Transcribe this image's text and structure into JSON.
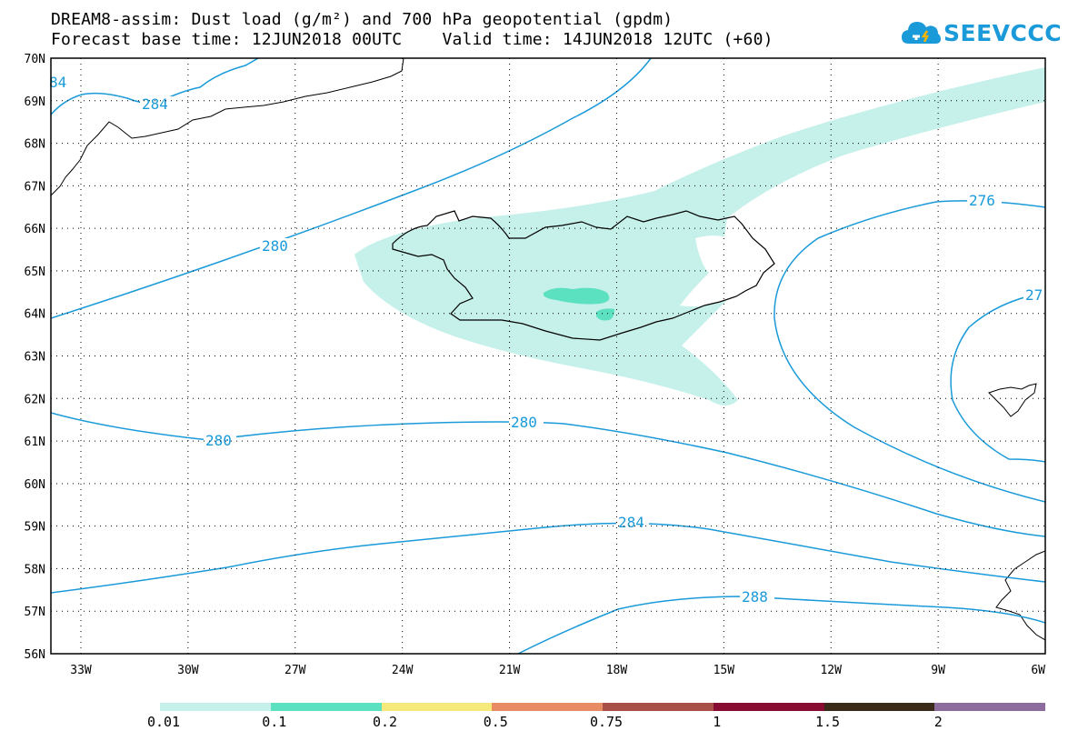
{
  "title": {
    "line1": "DREAM8-assim: Dust load (g/m²) and 700 hPa geopotential (gpdm)",
    "line2": "Forecast base time: 12JUN2018 00UTC    Valid time: 14JUN2018 12UTC (+60)"
  },
  "logo": {
    "text": "SEEVCCC",
    "icon": "cloud-icon",
    "color": "#1a9ad9"
  },
  "axes": {
    "lat_labels": [
      "70N",
      "69N",
      "68N",
      "67N",
      "66N",
      "65N",
      "64N",
      "63N",
      "62N",
      "61N",
      "60N",
      "59N",
      "58N",
      "57N",
      "56N"
    ],
    "lon_labels": [
      "33W",
      "30W",
      "27W",
      "24W",
      "21W",
      "18W",
      "15W",
      "12W",
      "9W",
      "6W"
    ]
  },
  "contours": {
    "color": "#1a9ad9",
    "labels": [
      "84",
      "284",
      "280",
      "276",
      "27",
      "280",
      "280",
      "284",
      "288"
    ]
  },
  "dust": {
    "light_color": "#c6f0ea",
    "medium_color": "#5be0c0"
  },
  "colorbar": {
    "colors": [
      "#c6f0ea",
      "#5be0c0",
      "#f6e97c",
      "#e88c66",
      "#a85048",
      "#880b31",
      "#3a2a1a",
      "#8c6c9c"
    ],
    "labels": [
      "0.01",
      "0.1",
      "0.2",
      "0.5",
      "0.75",
      "1",
      "1.5",
      "2"
    ]
  }
}
